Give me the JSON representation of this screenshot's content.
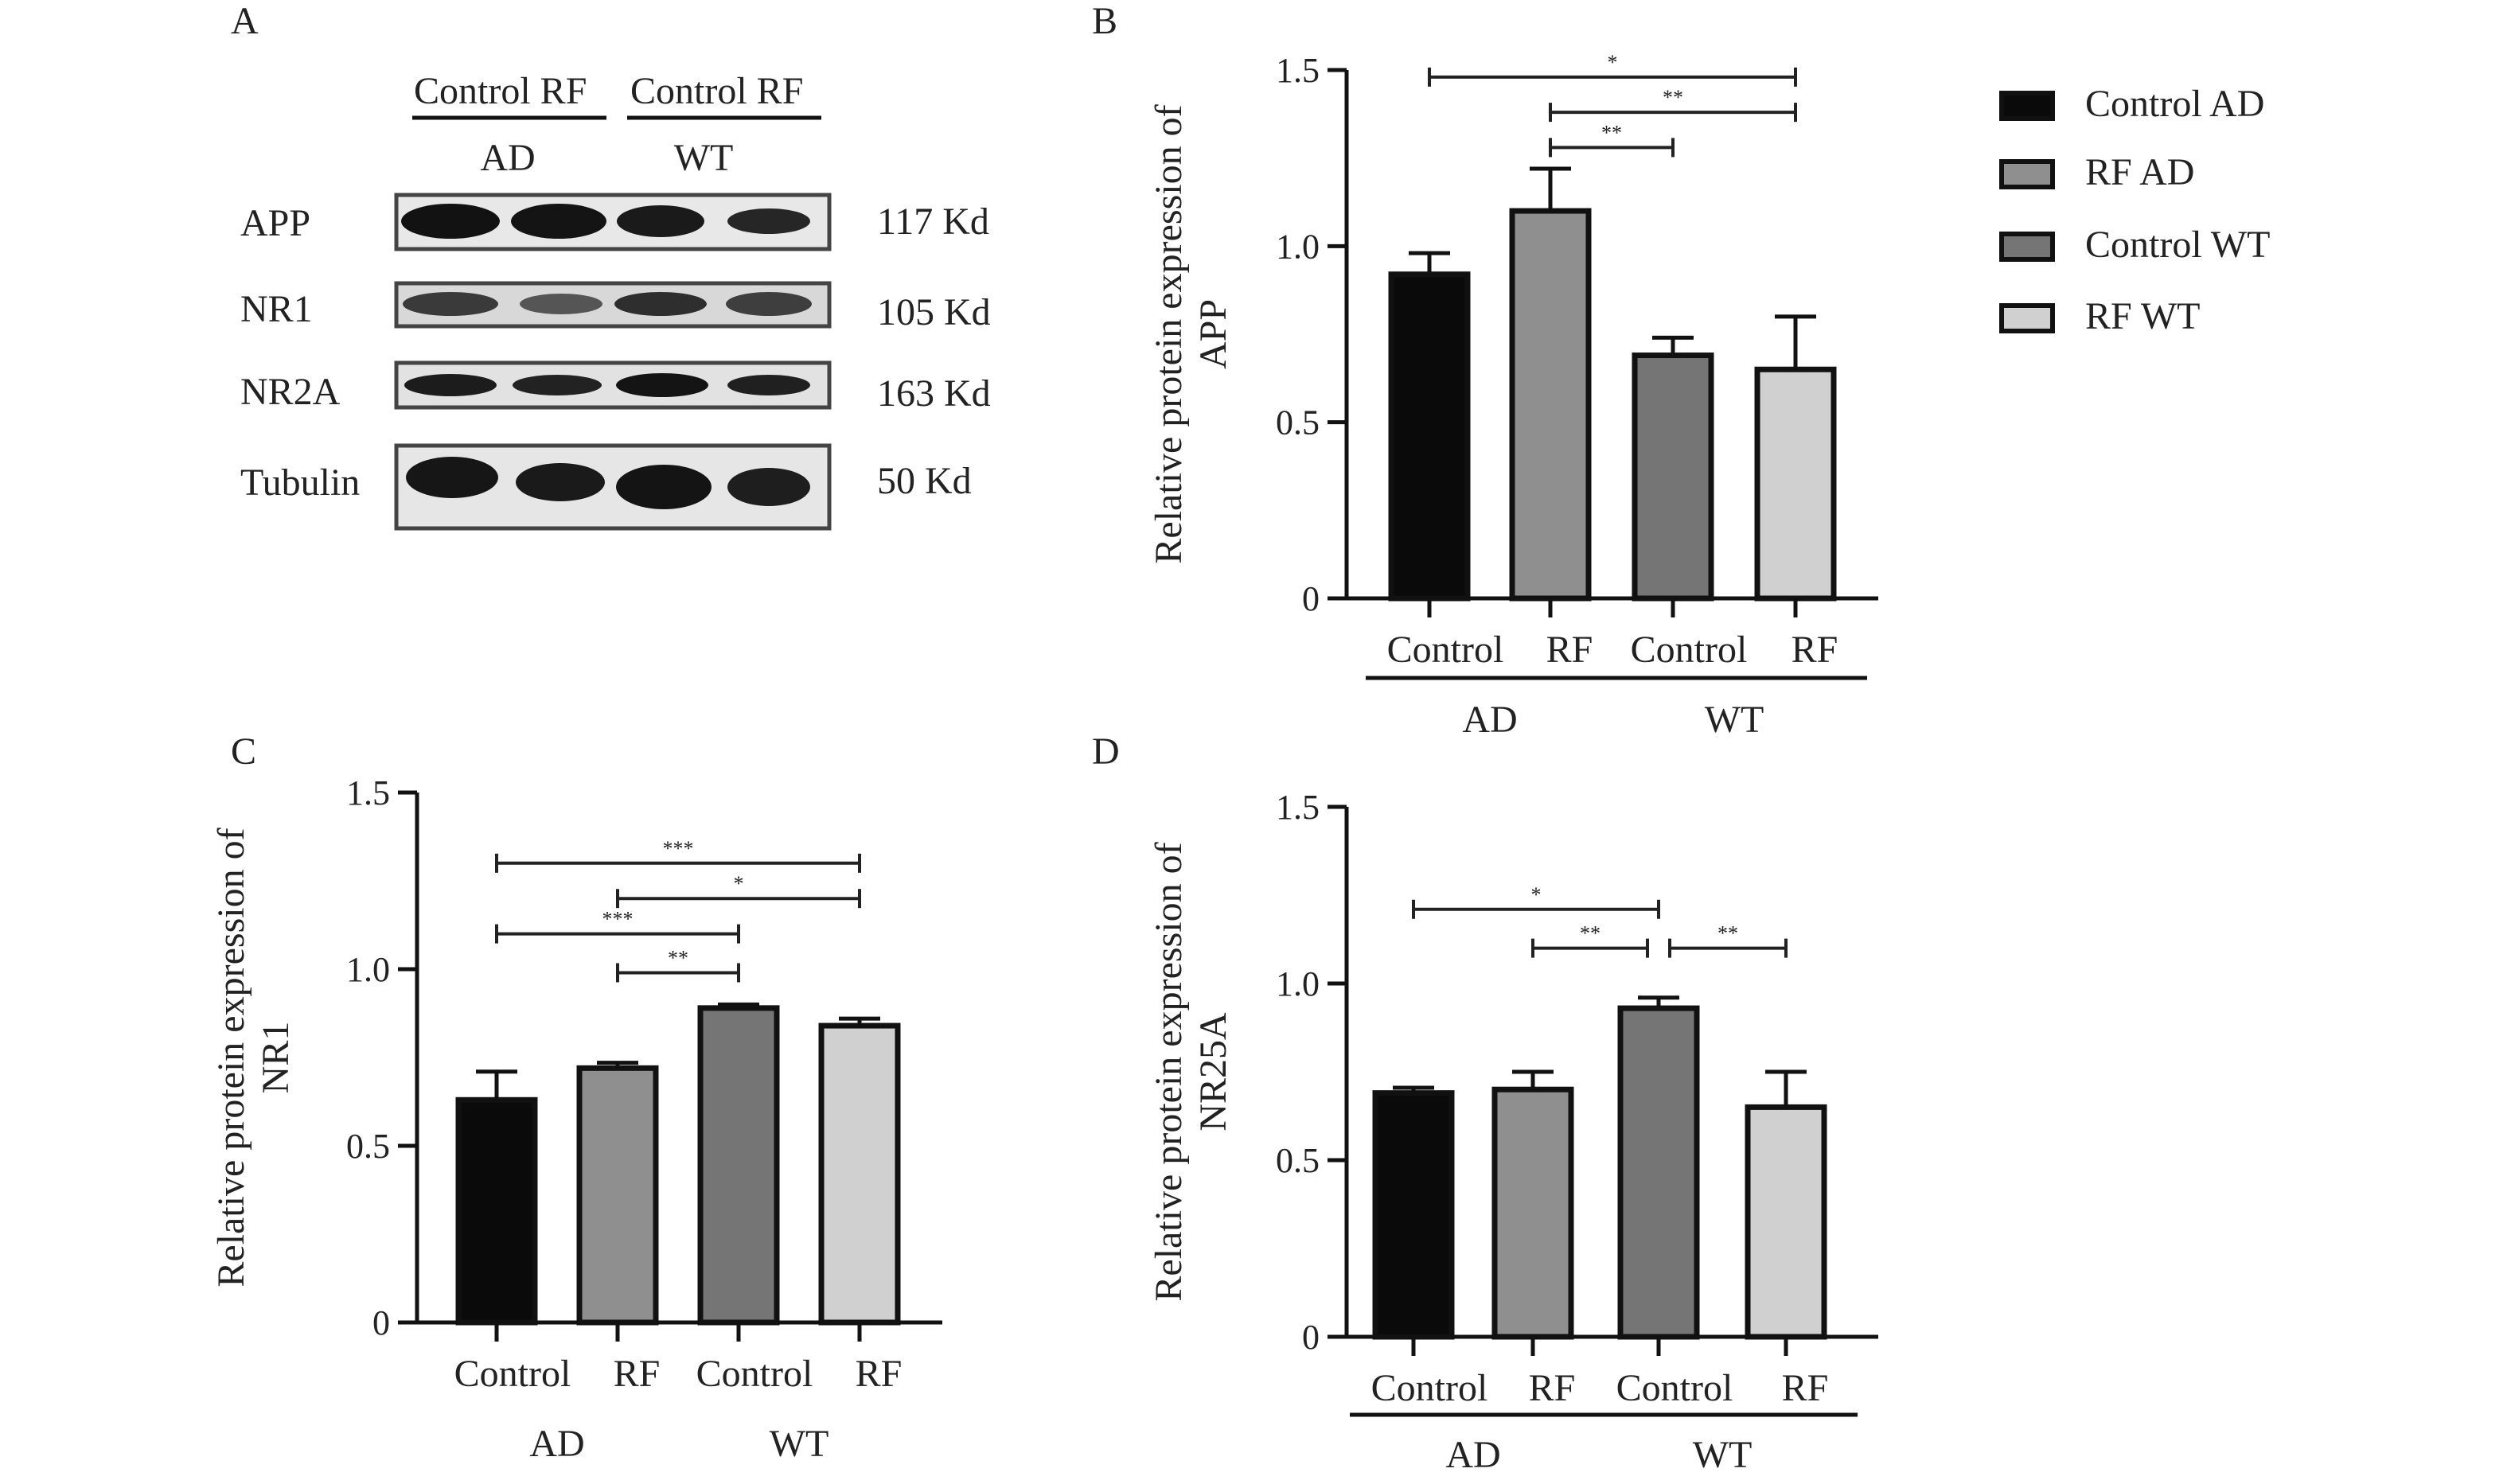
{
  "panels": {
    "A": "A",
    "B": "B",
    "C": "C",
    "D": "D"
  },
  "colors": {
    "control_ad": "#0a0a0a",
    "rf_ad": "#8f8f8f",
    "control_wt": "#757575",
    "rf_wt": "#d0d0d0"
  },
  "legend": {
    "items": [
      {
        "label": "Control AD",
        "color": "#0a0a0a"
      },
      {
        "label": "RF AD",
        "color": "#8f8f8f"
      },
      {
        "label": "Control WT",
        "color": "#757575"
      },
      {
        "label": "RF WT",
        "color": "#d0d0d0"
      }
    ]
  },
  "western_blot": {
    "lane_headers": [
      "Control RF",
      "Control RF"
    ],
    "group_labels": [
      "AD",
      "WT"
    ],
    "rows": [
      {
        "protein": "APP",
        "size": "117 Kd"
      },
      {
        "protein": "NR1",
        "size": "105 Kd"
      },
      {
        "protein": "NR2A",
        "size": "163 Kd"
      },
      {
        "protein": "Tubulin",
        "size": "50 Kd"
      }
    ]
  },
  "chart_data": [
    {
      "panel": "B",
      "type": "bar",
      "categories": [
        "Control AD",
        "RF AD",
        "Control WT",
        "RF WT"
      ],
      "values": [
        0.92,
        1.1,
        0.69,
        0.65
      ],
      "errors": [
        0.06,
        0.12,
        0.05,
        0.15
      ],
      "ylabel_lines": [
        "Relative protein expression of",
        "APP"
      ],
      "yticks": [
        "0",
        "0.5",
        "1.0",
        "1.5"
      ],
      "ylim": [
        0,
        1.5
      ],
      "xtick_labels": [
        "Control",
        "RF",
        "Control",
        "RF"
      ],
      "group_labels": [
        "AD",
        "WT"
      ],
      "significance": [
        {
          "from": 0,
          "to": 3,
          "y": 1.48,
          "label": "*"
        },
        {
          "from": 1,
          "to": 3,
          "y": 1.38,
          "label": "**"
        },
        {
          "from": 1,
          "to": 2,
          "y": 1.28,
          "label": "**"
        }
      ]
    },
    {
      "panel": "C",
      "type": "bar",
      "categories": [
        "Control AD",
        "RF AD",
        "Control WT",
        "RF WT"
      ],
      "values": [
        0.63,
        0.72,
        0.89,
        0.84
      ],
      "errors": [
        0.08,
        0.015,
        0.01,
        0.02
      ],
      "ylabel_lines": [
        "Relative protein expression of",
        "NR1"
      ],
      "yticks": [
        "0",
        "0.5",
        "1.0",
        "1.5"
      ],
      "ylim": [
        0,
        1.5
      ],
      "xtick_labels": [
        "Control",
        "RF",
        "Control",
        "RF"
      ],
      "group_labels": [
        "AD",
        "WT"
      ],
      "significance": [
        {
          "from": 0,
          "to": 3,
          "y": 1.3,
          "label": "***"
        },
        {
          "from": 1,
          "to": 3,
          "y": 1.2,
          "label": "*"
        },
        {
          "from": 0,
          "to": 2,
          "y": 1.1,
          "label": "***"
        },
        {
          "from": 1,
          "to": 2,
          "y": 0.99,
          "label": "**"
        }
      ]
    },
    {
      "panel": "D",
      "type": "bar",
      "categories": [
        "Control AD",
        "RF AD",
        "Control WT",
        "RF WT"
      ],
      "values": [
        0.69,
        0.7,
        0.93,
        0.65
      ],
      "errors": [
        0.015,
        0.05,
        0.03,
        0.1
      ],
      "ylabel_lines": [
        "Relative protein expression of",
        "NR25A"
      ],
      "yticks": [
        "0",
        "0.5",
        "1.0",
        "1.5"
      ],
      "ylim": [
        0,
        1.5
      ],
      "xtick_labels": [
        "Control",
        "RF",
        "Control",
        "RF"
      ],
      "group_labels": [
        "AD",
        "WT"
      ],
      "significance": [
        {
          "from": 0,
          "to": 2,
          "y": 1.21,
          "label": "*"
        },
        {
          "from": 1,
          "to": 2,
          "y": 1.1,
          "label": "**"
        },
        {
          "from": 2,
          "to": 3,
          "y": 1.1,
          "label": "**"
        }
      ]
    }
  ]
}
